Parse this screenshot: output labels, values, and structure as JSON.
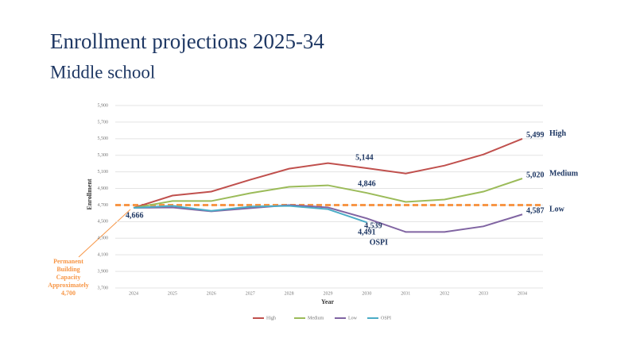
{
  "chart_data": {
    "type": "line",
    "title": "Enrollment projections 2025-34",
    "subtitle": "Middle school",
    "x_label": "Year",
    "y_label": "Enrollment",
    "categories": [
      "2024",
      "2025",
      "2026",
      "2027",
      "2028",
      "2029",
      "2030",
      "2031",
      "2032",
      "2033",
      "2034"
    ],
    "series": [
      {
        "name": "High",
        "color": "#c0504d",
        "values": [
          4666,
          4814,
          4862,
          5005,
          5138,
          5205,
          5144,
          5080,
          5176,
          5310,
          5499
        ],
        "value_labels": [
          "4,666",
          null,
          null,
          null,
          null,
          null,
          "5,144",
          null,
          null,
          null,
          "5,499"
        ]
      },
      {
        "name": "Medium",
        "color": "#9bbb59",
        "values": [
          4666,
          4748,
          4748,
          4843,
          4919,
          4938,
          4846,
          4738,
          4767,
          4862,
          5020
        ],
        "value_labels": [
          null,
          null,
          null,
          null,
          null,
          null,
          "4,846",
          null,
          null,
          null,
          "5,020"
        ]
      },
      {
        "name": "Low",
        "color": "#8064a2",
        "values": [
          4666,
          4671,
          4624,
          4662,
          4700,
          4671,
          4539,
          4376,
          4376,
          4443,
          4587
        ],
        "value_labels": [
          null,
          null,
          null,
          null,
          null,
          null,
          "4,539",
          null,
          null,
          null,
          "4,587"
        ]
      },
      {
        "name": "OSPI",
        "color": "#4bacc6",
        "values": [
          4666,
          4690,
          4630,
          4680,
          4690,
          4650,
          4491,
          null,
          null,
          null,
          null
        ],
        "value_labels": [
          null,
          null,
          null,
          null,
          null,
          null,
          "4,491",
          null,
          null,
          null,
          null
        ]
      }
    ],
    "ylim": [
      3700,
      5900
    ],
    "yticks": [
      {
        "value": 3700,
        "label": "3,700"
      },
      {
        "value": 3900,
        "label": "3,900"
      },
      {
        "value": 4100,
        "label": "4,100"
      },
      {
        "value": 4300,
        "label": "4,300"
      },
      {
        "value": 4500,
        "label": "4,500"
      },
      {
        "value": 4700,
        "label": "4,700"
      },
      {
        "value": 4900,
        "label": "4,900"
      },
      {
        "value": 5100,
        "label": "5,100"
      },
      {
        "value": 5300,
        "label": "5,300"
      },
      {
        "value": 5500,
        "label": "5,500"
      },
      {
        "value": 5700,
        "label": "5,700"
      },
      {
        "value": 5900,
        "label": "5,900"
      }
    ],
    "grid": true,
    "legend": "bottom",
    "reference_line": {
      "value": 4700,
      "color": "#f79646",
      "text": [
        "Permanent",
        "Building",
        "Capacity",
        "Approximately",
        "4,700"
      ]
    }
  }
}
